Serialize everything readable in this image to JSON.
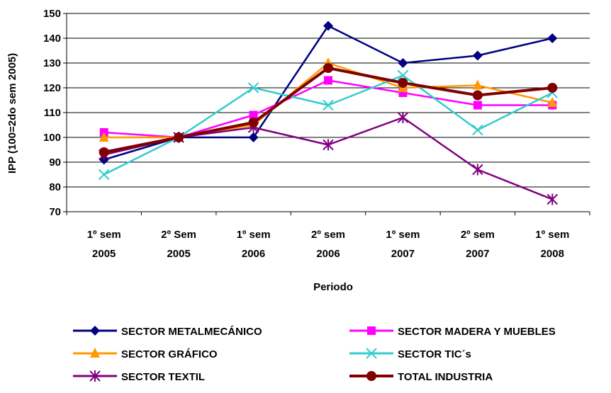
{
  "chart_data": {
    "type": "line",
    "title": "",
    "xlabel": "Periodo",
    "ylabel": "IPP (100=2do sem 2005)",
    "ylim": [
      70,
      150
    ],
    "yticks": [
      70,
      80,
      90,
      100,
      110,
      120,
      130,
      140,
      150
    ],
    "grid": true,
    "legend_position": "bottom",
    "categories": [
      [
        "1º sem",
        "2005"
      ],
      [
        "2º Sem",
        "2005"
      ],
      [
        "1º sem",
        "2006"
      ],
      [
        "2º sem",
        "2006"
      ],
      [
        "1º sem",
        "2007"
      ],
      [
        "2º sem",
        "2007"
      ],
      [
        "1º sem",
        "2008"
      ]
    ],
    "series": [
      {
        "name": "SECTOR METALMECÁNICO",
        "color": "#000080",
        "marker": "diamond",
        "values": [
          91,
          100,
          100,
          145,
          130,
          133,
          140
        ]
      },
      {
        "name": "SECTOR MADERA Y MUEBLES",
        "color": "#FF00FF",
        "marker": "square",
        "values": [
          102,
          100,
          109,
          123,
          118,
          113,
          113
        ]
      },
      {
        "name": "SECTOR GRÁFICO",
        "color": "#FF9900",
        "marker": "triangle",
        "values": [
          100,
          100,
          105,
          130,
          120,
          121,
          114
        ]
      },
      {
        "name": "SECTOR TIC´s",
        "color": "#33CCCC",
        "marker": "x",
        "values": [
          85,
          100,
          120,
          113,
          125,
          103,
          118
        ]
      },
      {
        "name": "SECTOR TEXTIL",
        "color": "#800080",
        "marker": "star",
        "values": [
          93,
          100,
          104,
          97,
          108,
          87,
          75
        ]
      },
      {
        "name": "TOTAL INDUSTRIA",
        "color": "#800000",
        "marker": "circle",
        "values": [
          94,
          100,
          106,
          128,
          122,
          117,
          120
        ]
      }
    ]
  }
}
